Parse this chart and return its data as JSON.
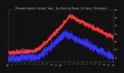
{
  "title": "Milwaukee Weather Outdoor Temp / Dew Point by Minute (24 Hours) (Alternate)",
  "bg_color": "#111111",
  "plot_bg_color": "#111111",
  "text_color": "#cccccc",
  "grid_color": "#444444",
  "temp_color": "#ff3333",
  "dew_color": "#3333ff",
  "ylim": [
    25,
    90
  ],
  "xlim": [
    0,
    1440
  ],
  "yticks": [
    30,
    40,
    50,
    60,
    70,
    80,
    90
  ],
  "xtick_positions": [
    0,
    60,
    120,
    180,
    240,
    300,
    360,
    420,
    480,
    540,
    600,
    660,
    720,
    780,
    840,
    900,
    960,
    1020,
    1080,
    1140,
    1200,
    1260,
    1320,
    1380,
    1440
  ],
  "xtick_labels": [
    "12a",
    "1",
    "2",
    "3",
    "4",
    "5",
    "6",
    "7",
    "8",
    "9",
    "10",
    "11",
    "12p",
    "1",
    "2",
    "3",
    "4",
    "5",
    "6",
    "7",
    "8",
    "9",
    "10",
    "11",
    "12"
  ]
}
